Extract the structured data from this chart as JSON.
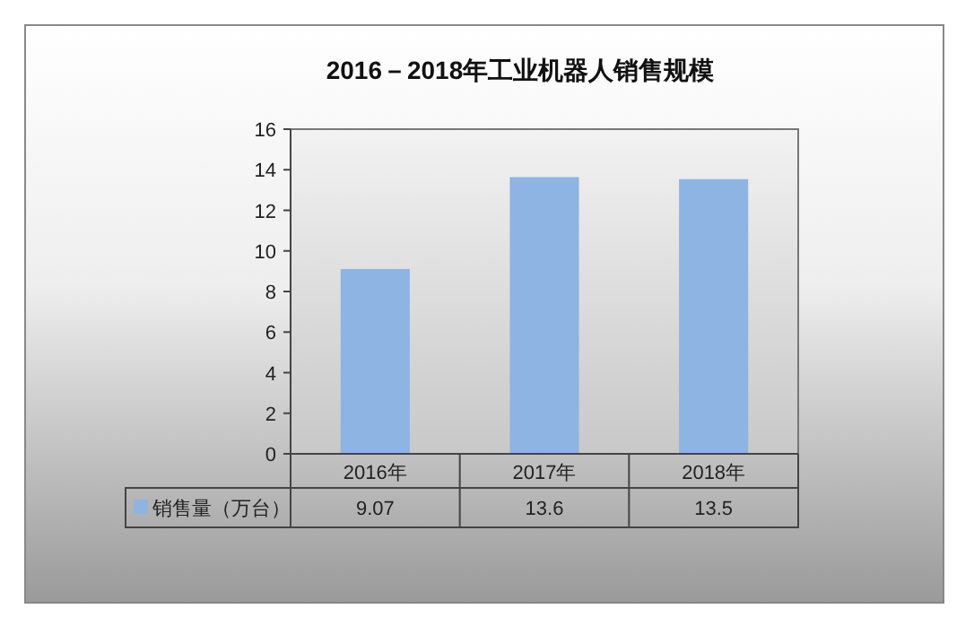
{
  "chart_data": {
    "type": "bar",
    "title": "2016－2018年工业机器人销售规模",
    "categories": [
      "2016年",
      "2017年",
      "2018年"
    ],
    "series": [
      {
        "name": "销售量（万台）",
        "color": "#8db4e2",
        "values": [
          9.07,
          13.6,
          13.5
        ]
      }
    ],
    "ylim": [
      0,
      16
    ],
    "yticks": [
      0,
      2,
      4,
      6,
      8,
      10,
      12,
      14,
      16
    ],
    "data_labels": true,
    "legend": "bottom"
  }
}
